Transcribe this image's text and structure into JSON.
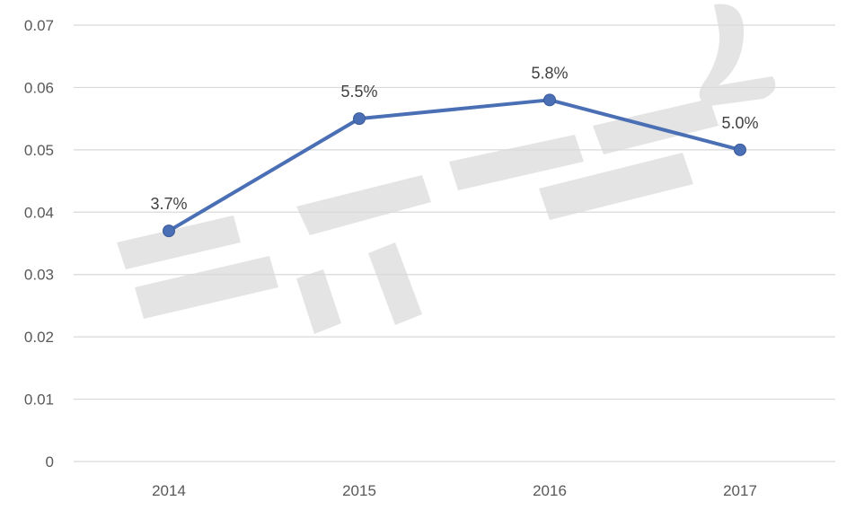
{
  "chart_data": {
    "type": "line",
    "title": "",
    "xlabel": "",
    "ylabel": "",
    "categories": [
      "2014",
      "2015",
      "2016",
      "2017"
    ],
    "series": [
      {
        "values": [
          0.037,
          0.055,
          0.058,
          0.05
        ],
        "data_labels": [
          "3.7%",
          "5.5%",
          "5.8%",
          "5.0%"
        ],
        "color": "#4a6fb5"
      }
    ],
    "ylim": [
      0,
      0.07
    ],
    "yticks": [
      "0",
      "0.01",
      "0.02",
      "0.03",
      "0.04",
      "0.05",
      "0.06",
      "0.07"
    ],
    "grid": true,
    "legend": "none"
  },
  "watermark": {
    "text": "新房泉"
  }
}
